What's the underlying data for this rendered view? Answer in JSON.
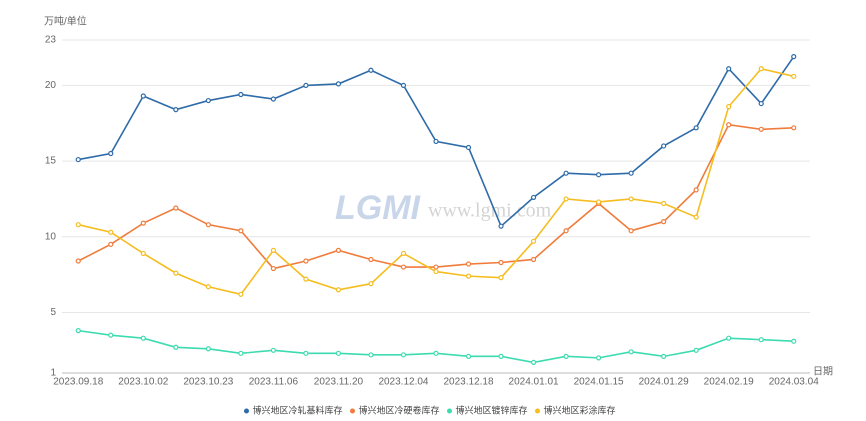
{
  "chart_data": {
    "type": "line",
    "y_label": "万吨/单位",
    "x_label": "日期",
    "watermark": [
      "LGMI",
      "www.lgmi.com"
    ],
    "categories": [
      "2023.09.18",
      null,
      "2023.10.02",
      null,
      "2023.10.23",
      null,
      "2023.11.06",
      null,
      "2023.11.20",
      null,
      "2023.12.04",
      null,
      "2023.12.18",
      null,
      "2024.01.01",
      null,
      "2024.01.15",
      null,
      "2024.01.29",
      null,
      "2024.02.19",
      null,
      "2024.03.04"
    ],
    "series": [
      {
        "name": "博兴地区冷轧基料库存",
        "color": "#2e6ba8",
        "values": [
          15.1,
          15.5,
          19.3,
          18.4,
          19.0,
          19.4,
          19.1,
          20.0,
          20.1,
          21.0,
          20.0,
          16.3,
          15.9,
          10.7,
          12.6,
          14.2,
          14.1,
          14.2,
          16.0,
          17.2,
          21.1,
          18.8,
          21.9
        ]
      },
      {
        "name": "博兴地区冷硬卷库存",
        "color": "#f07c3c",
        "values": [
          8.4,
          9.5,
          10.9,
          11.9,
          10.8,
          10.4,
          7.9,
          8.4,
          9.1,
          8.5,
          8.0,
          8.0,
          8.2,
          8.3,
          8.5,
          10.4,
          12.2,
          10.4,
          11.0,
          13.1,
          17.4,
          17.1,
          17.2
        ]
      },
      {
        "name": "博兴地区镀锌库存",
        "color": "#3ddbb0",
        "values": [
          3.8,
          3.5,
          3.3,
          2.7,
          2.6,
          2.3,
          2.5,
          2.3,
          2.3,
          2.2,
          2.2,
          2.3,
          2.1,
          2.1,
          1.7,
          2.1,
          2.0,
          2.4,
          2.1,
          2.5,
          3.3,
          3.2,
          3.1
        ]
      },
      {
        "name": "博兴地区彩涂库存",
        "color": "#f5bd1f",
        "values": [
          10.8,
          10.3,
          8.9,
          7.6,
          6.7,
          6.2,
          9.1,
          7.2,
          6.5,
          6.9,
          8.9,
          7.7,
          7.4,
          7.3,
          9.7,
          12.5,
          12.3,
          12.5,
          12.2,
          11.3,
          18.6,
          21.1,
          20.6
        ]
      }
    ],
    "ylim": [
      1,
      23
    ],
    "yticks": [
      1,
      5,
      10,
      15,
      20,
      23
    ],
    "grid": true
  }
}
